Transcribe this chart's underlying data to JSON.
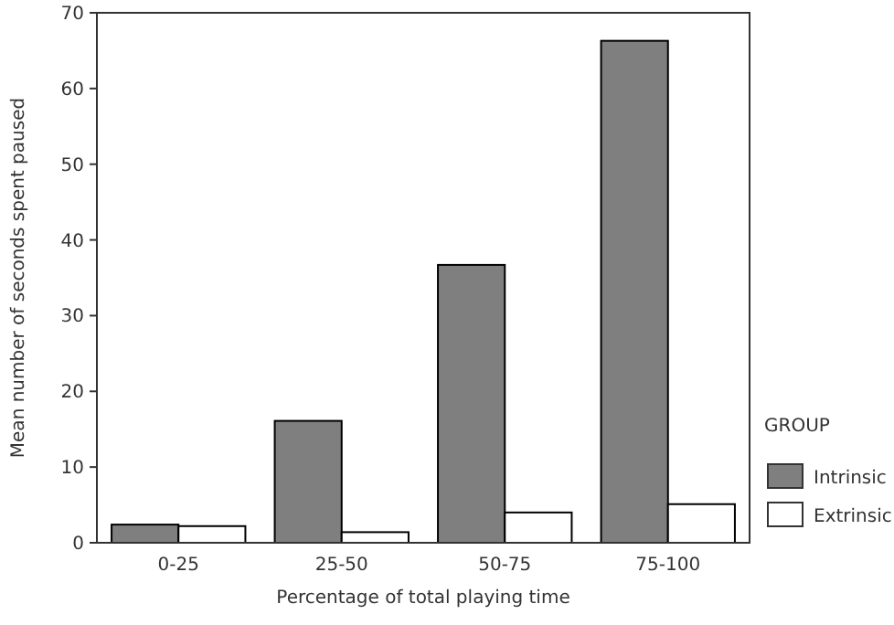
{
  "chart_data": {
    "type": "bar",
    "xlabel": "Percentage of total playing time",
    "ylabel": "Mean number of seconds spent paused",
    "legend_title": "GROUP",
    "categories": [
      "0-25",
      "25-50",
      "50-75",
      "75-100"
    ],
    "series": [
      {
        "name": "Intrinsic",
        "color": "#7f7f7f",
        "values": [
          2.4,
          16.1,
          36.7,
          66.3
        ]
      },
      {
        "name": "Extrinsic",
        "color": "#ffffff",
        "values": [
          2.2,
          1.4,
          4.0,
          5.1
        ]
      }
    ],
    "ylim": [
      0,
      70
    ],
    "yticks": [
      0,
      10,
      20,
      30,
      40,
      50,
      60,
      70
    ],
    "grid": false,
    "legend": "right"
  }
}
